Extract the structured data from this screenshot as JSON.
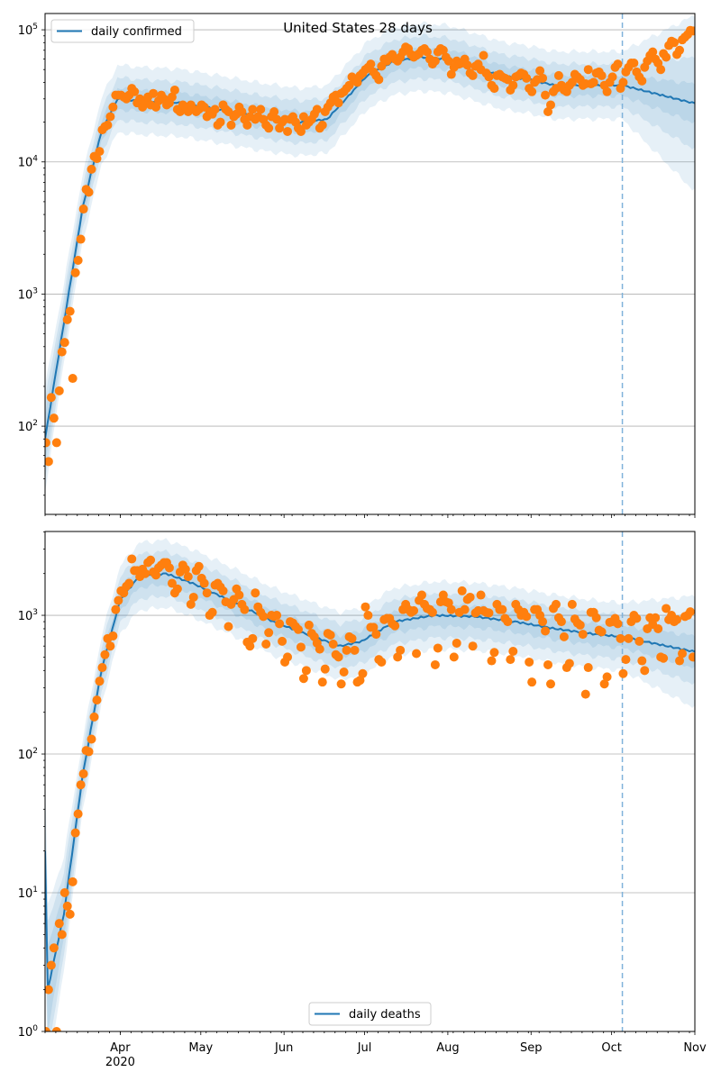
{
  "chart_data": [
    {
      "type": "scatter",
      "title": "United States 28 days",
      "yscale": "log",
      "ylim": [
        21.5,
        132800
      ],
      "y_ticks": [
        {
          "base": "10",
          "exp": "2",
          "value": 100
        },
        {
          "base": "10",
          "exp": "3",
          "value": 1000
        },
        {
          "base": "10",
          "exp": "4",
          "value": 10000
        },
        {
          "base": "10",
          "exp": "5",
          "value": 100000
        }
      ],
      "x_start_date": "2020-03-04",
      "x_days": 242,
      "x_ticks": [
        {
          "label": "Apr",
          "day": 28
        },
        {
          "label": "May",
          "day": 58
        },
        {
          "label": "Jun",
          "day": 89
        },
        {
          "label": "Jul",
          "day": 119
        },
        {
          "label": "Aug",
          "day": 150
        },
        {
          "label": "Sep",
          "day": 181
        },
        {
          "label": "Oct",
          "day": 211
        },
        {
          "label": "Nov",
          "day": 242
        }
      ],
      "x_year_label": "2020",
      "forecast_start_day": 215,
      "legend": {
        "label": "daily confirmed",
        "placement": "top-left"
      },
      "grid": "y-major",
      "series": [
        {
          "name": "daily confirmed",
          "kind": "line",
          "key_days": [
            0,
            7,
            14,
            21,
            27,
            35,
            50,
            65,
            80,
            95,
            105,
            112,
            120,
            130,
            140,
            150,
            160,
            170,
            180,
            190,
            200,
            215,
            241
          ],
          "key_values": [
            80,
            600,
            4500,
            17000,
            30000,
            29000,
            28000,
            25000,
            22000,
            20000,
            21000,
            30000,
            45000,
            58000,
            62000,
            60000,
            52000,
            45000,
            42000,
            38000,
            38000,
            38000,
            28000
          ],
          "band_factors_50_80_95": [
            [
              1.5,
              2,
              2.5
            ],
            [
              1.3,
              1.6,
              2
            ],
            [
              1.2,
              1.45,
              1.8
            ],
            [
              1.2,
              1.45,
              1.8
            ],
            [
              1.2,
              1.45,
              1.8
            ],
            [
              1.2,
              1.45,
              1.8
            ],
            [
              1.2,
              1.45,
              1.8
            ],
            [
              1.2,
              1.45,
              1.8
            ],
            [
              1.2,
              1.45,
              1.8
            ],
            [
              1.2,
              1.45,
              1.8
            ],
            [
              1.2,
              1.45,
              1.8
            ],
            [
              1.2,
              1.45,
              1.8
            ],
            [
              1.2,
              1.45,
              1.8
            ],
            [
              1.2,
              1.45,
              1.8
            ],
            [
              1.2,
              1.45,
              1.8
            ],
            [
              1.2,
              1.45,
              1.8
            ],
            [
              1.2,
              1.45,
              1.8
            ],
            [
              1.2,
              1.45,
              1.8
            ],
            [
              1.2,
              1.45,
              1.8
            ],
            [
              1.2,
              1.45,
              1.8
            ],
            [
              1.2,
              1.45,
              1.8
            ],
            [
              1.2,
              1.45,
              1.8
            ],
            [
              1.4,
              2.2,
              4.5
            ]
          ]
        },
        {
          "name": "observed",
          "kind": "points",
          "values": [
            75,
            54,
            165,
            115,
            75,
            185,
            365,
            430,
            640,
            740,
            230,
            1450,
            1800,
            2600,
            4400,
            6200,
            5900,
            8800,
            11000,
            10600,
            12000,
            17500,
            18500,
            19000,
            22000,
            26000,
            32000,
            32000,
            32000,
            31000,
            30000,
            32000,
            36000,
            34000,
            28000,
            30000,
            26000,
            29000,
            31000,
            27000,
            33000,
            26000,
            29000,
            32000,
            30000,
            27000,
            28000,
            31000,
            35000,
            25000,
            24000,
            27000,
            26000,
            24000,
            27000,
            25000,
            24000,
            25000,
            27000,
            26000,
            22000,
            24000,
            23000,
            25000,
            19000,
            20000,
            27000,
            25000,
            24000,
            19000,
            22000,
            23000,
            26000,
            24000,
            21000,
            19000,
            22000,
            25000,
            21000,
            22000,
            25000,
            21000,
            19000,
            18000,
            22000,
            24000,
            21000,
            18000,
            20000,
            21000,
            17000,
            21000,
            22000,
            20000,
            18000,
            17000,
            22000,
            19000,
            20000,
            21000,
            23000,
            25000,
            18000,
            19000,
            24000,
            26000,
            28000,
            31000,
            32000,
            28000,
            33000,
            34000,
            36000,
            38000,
            44000,
            42000,
            40000,
            45000,
            47000,
            50000,
            52000,
            55000,
            48000,
            45000,
            42000,
            53000,
            60000,
            58000,
            62000,
            65000,
            60000,
            58000,
            62000,
            68000,
            74000,
            72000,
            65000,
            62000,
            64000,
            66000,
            70000,
            72000,
            68000,
            60000,
            55000,
            58000,
            68000,
            72000,
            70000,
            62000,
            58000,
            46000,
            52000,
            58000,
            55000,
            56000,
            60000,
            54000,
            47000,
            45000,
            53000,
            55000,
            50000,
            64000,
            47000,
            44000,
            38000,
            36000,
            45000,
            46000,
            44000,
            43000,
            42000,
            35000,
            38000,
            44000,
            45000,
            47000,
            46000,
            43000,
            36000,
            34000,
            40000,
            42000,
            49000,
            43000,
            32000,
            24000,
            27000,
            34000,
            36000,
            45000,
            38000,
            35000,
            34000,
            38000,
            40000,
            46000,
            44000,
            42000,
            38000,
            39000,
            50000,
            39000,
            40000,
            47000,
            48000,
            45000,
            38000,
            34000,
            40000,
            44000,
            52000,
            55000,
            36000,
            40000,
            48000,
            52000,
            56000,
            56000,
            48000,
            44000,
            41000,
            52000,
            58000,
            64000,
            68000,
            60000,
            56000,
            50000,
            66000,
            62000,
            76000,
            82000,
            80000,
            65000,
            70000,
            84000,
            88000,
            92000,
            99000,
            98000
          ]
        }
      ]
    },
    {
      "type": "scatter",
      "yscale": "log",
      "ylim": [
        1,
        4020
      ],
      "y_ticks": [
        {
          "base": "10",
          "exp": "0",
          "value": 1
        },
        {
          "base": "10",
          "exp": "1",
          "value": 10
        },
        {
          "base": "10",
          "exp": "2",
          "value": 100
        },
        {
          "base": "10",
          "exp": "3",
          "value": 1000
        }
      ],
      "forecast_start_day": 215,
      "legend": {
        "label": "daily deaths",
        "placement": "bottom-center"
      },
      "grid": "y-major",
      "series": [
        {
          "name": "daily deaths",
          "kind": "line",
          "key_days": [
            0,
            1,
            7,
            14,
            21,
            28,
            35,
            45,
            55,
            70,
            85,
            100,
            110,
            118,
            130,
            145,
            160,
            175,
            190,
            205,
            215,
            241
          ],
          "key_values": [
            20,
            2,
            7,
            70,
            400,
            1300,
            1900,
            2000,
            1700,
            1250,
            900,
            700,
            600,
            650,
            900,
            1000,
            980,
            900,
            800,
            730,
            700,
            550
          ],
          "band_factors_50_80_95": [
            [
              2,
              3,
              4
            ],
            [
              2,
              3,
              4
            ],
            [
              1.5,
              2,
              2.6
            ],
            [
              1.25,
              1.5,
              1.8
            ],
            [
              1.2,
              1.45,
              1.75
            ],
            [
              1.2,
              1.45,
              1.75
            ],
            [
              1.2,
              1.45,
              1.75
            ],
            [
              1.2,
              1.45,
              1.75
            ],
            [
              1.2,
              1.45,
              1.75
            ],
            [
              1.2,
              1.45,
              1.75
            ],
            [
              1.2,
              1.45,
              1.75
            ],
            [
              1.2,
              1.45,
              1.75
            ],
            [
              1.2,
              1.45,
              1.75
            ],
            [
              1.2,
              1.45,
              1.75
            ],
            [
              1.2,
              1.45,
              1.75
            ],
            [
              1.2,
              1.45,
              1.75
            ],
            [
              1.2,
              1.45,
              1.75
            ],
            [
              1.2,
              1.45,
              1.75
            ],
            [
              1.2,
              1.45,
              1.75
            ],
            [
              1.2,
              1.45,
              1.75
            ],
            [
              1.2,
              1.45,
              1.75
            ],
            [
              1.3,
              1.7,
              2.5
            ]
          ]
        },
        {
          "name": "observed",
          "kind": "points",
          "values": [
            1,
            2,
            3,
            4,
            1,
            6,
            5,
            10,
            8,
            7,
            12,
            27,
            37,
            60,
            72,
            106,
            104,
            128,
            185,
            245,
            335,
            420,
            520,
            680,
            600,
            710,
            1100,
            1280,
            1500,
            1450,
            1620,
            1700,
            2550,
            2100,
            2100,
            1900,
            2150,
            2000,
            2400,
            2500,
            2050,
            1950,
            2200,
            2300,
            2400,
            2400,
            2200,
            1700,
            1450,
            1550,
            2050,
            2300,
            2150,
            1900,
            1200,
            1350,
            2100,
            2250,
            1850,
            1700,
            1450,
            1000,
            1050,
            1650,
            1700,
            1600,
            1500,
            1250,
            830,
            1200,
            1300,
            1550,
            1400,
            1200,
            1100,
            640,
            600,
            680,
            1450,
            1150,
            1050,
            980,
            620,
            750,
            1000,
            980,
            1000,
            870,
            650,
            460,
            500,
            900,
            880,
            830,
            790,
            590,
            350,
            400,
            850,
            740,
            700,
            630,
            570,
            330,
            410,
            740,
            720,
            620,
            520,
            500,
            320,
            390,
            560,
            700,
            680,
            560,
            330,
            340,
            380,
            1150,
            1000,
            820,
            820,
            730,
            480,
            460,
            930,
            950,
            950,
            870,
            840,
            500,
            560,
            1100,
            1200,
            1100,
            1050,
            1080,
            530,
            1280,
            1400,
            1200,
            1120,
            1100,
            1050,
            440,
            580,
            1250,
            1400,
            1250,
            1230,
            1100,
            500,
            630,
            1050,
            1500,
            1100,
            1300,
            1350,
            600,
            1040,
            1080,
            1400,
            1080,
            1050,
            1040,
            470,
            540,
            1200,
            1100,
            1100,
            950,
            900,
            480,
            550,
            1200,
            1100,
            1000,
            1050,
            980,
            460,
            330,
            1100,
            1100,
            1000,
            900,
            770,
            440,
            320,
            1120,
            1200,
            960,
            900,
            700,
            420,
            450,
            1200,
            940,
            880,
            850,
            730,
            270,
            420,
            1050,
            1050,
            960,
            780,
            760,
            320,
            360,
            890,
            900,
            950,
            870,
            680,
            380,
            480,
            680,
            900,
            1000,
            950,
            650,
            470,
            400,
            800,
            960,
            860,
            960,
            800,
            500,
            490,
            1120,
            930,
            1000,
            900,
            930,
            470,
            530,
            980,
            1000,
            1060,
            500
          ]
        }
      ]
    }
  ],
  "colors": {
    "line": "#1f77b4",
    "points": "#ff7f0e",
    "band": "#1f77b4",
    "forecast_line": "#7fb2da",
    "grid": "#b0b0b0"
  }
}
